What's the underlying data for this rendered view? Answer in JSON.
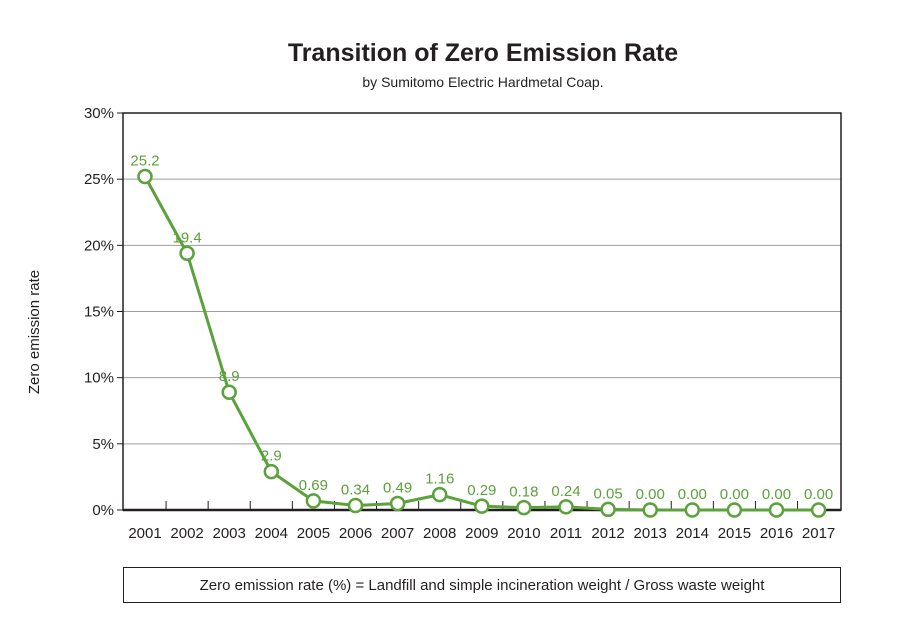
{
  "chart_data": {
    "type": "line",
    "title": "Transition of Zero Emission Rate",
    "subtitle": "by Sumitomo Electric Hardmetal Coap.",
    "ylabel": "Zero emission rate",
    "xlabel": "",
    "ylim": [
      0,
      30
    ],
    "y_ticks": [
      0,
      5,
      10,
      15,
      20,
      25,
      30
    ],
    "y_tick_labels": [
      "0%",
      "5%",
      "10%",
      "15%",
      "20%",
      "25%",
      "30%"
    ],
    "grid": true,
    "categories": [
      "2001",
      "2002",
      "2003",
      "2004",
      "2005",
      "2006",
      "2007",
      "2008",
      "2009",
      "2010",
      "2011",
      "2012",
      "2013",
      "2014",
      "2015",
      "2016",
      "2017"
    ],
    "series": [
      {
        "name": "Zero emission rate",
        "values": [
          25.2,
          19.4,
          8.9,
          2.9,
          0.69,
          0.34,
          0.49,
          1.16,
          0.29,
          0.18,
          0.24,
          0.05,
          0.0,
          0.0,
          0.0,
          0.0,
          0.0
        ],
        "value_labels": [
          "25.2",
          "19.4",
          "8.9",
          "2.9",
          "0.69",
          "0.34",
          "0.49",
          "1.16",
          "0.29",
          "0.18",
          "0.24",
          "0.05",
          "0.00",
          "0.00",
          "0.00",
          "0.00",
          "0.00"
        ],
        "color": "#5ba23c"
      }
    ],
    "footnote": "Zero emission rate (%) = Landfill and simple incineration weight / Gross waste weight"
  }
}
